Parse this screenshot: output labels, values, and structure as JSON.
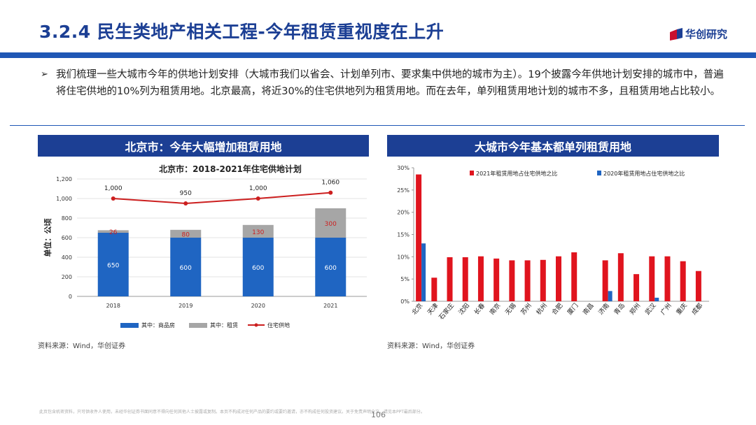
{
  "header": {
    "title": "3.2.4 民生类地产相关工程-今年租赁重视度在上升",
    "logo_text": "华创研究"
  },
  "bullet": {
    "marker": "➢",
    "text": "我们梳理一些大城市今年的供地计划安排（大城市我们以省会、计划单列市、要求集中供地的城市为主）。19个披露今年供地计划安排的城市中，普遍将住宅供地的10%列为租赁用地。北京最高，将近30%的住宅供地列为租赁用地。而在去年，单列租赁用地计划的城市不多，且租赁用地占比较小。"
  },
  "left_panel": {
    "header": "北京市：今年大幅增加租赁用地",
    "source": "资料来源：Wind，华创证券"
  },
  "right_panel": {
    "header": "大城市今年基本都单列租赁用地",
    "source": "资料来源：Wind，华创证券"
  },
  "footer": {
    "disclaimer": "此页包含机密资料，只可供收件人使用，未经华创证券书面同意不得向任何其他人士披露或复制。本页不构成对任何产品的要约或要约邀请，亦不构成任何投资建议。关于免责声明全文，请见本PPT最后部分。",
    "page_number": "106"
  },
  "colors": {
    "brand_blue": "#1c3f94",
    "band_blue": "#1f57b5",
    "bar_blue": "#1f65c2",
    "bar_gray": "#a6a6a6",
    "line_red": "#cc1f1f",
    "bar_red": "#e0141e"
  },
  "chart_data": [
    {
      "type": "bar",
      "title": "北京市：2018-2021年住宅供地计划",
      "ylabel": "单位：公顷",
      "xlabel": "",
      "ylim": [
        0,
        1200
      ],
      "yticks": [
        "0",
        "200",
        "400",
        "600",
        "800",
        "1,000",
        "1,200"
      ],
      "categories": [
        "2018",
        "2019",
        "2020",
        "2021"
      ],
      "series": [
        {
          "name": "其中：商品房",
          "kind": "stacked-bar",
          "values": [
            650,
            600,
            600,
            600
          ],
          "labels": [
            "650",
            "600",
            "600",
            "600"
          ]
        },
        {
          "name": "其中：租赁",
          "kind": "stacked-bar",
          "values": [
            26,
            80,
            130,
            300
          ],
          "labels": [
            "26",
            "80",
            "130",
            "300"
          ]
        },
        {
          "name": "住宅供地",
          "kind": "line",
          "values": [
            1000,
            950,
            1000,
            1060
          ],
          "labels": [
            "1,000",
            "950",
            "1,000",
            "1,060"
          ]
        }
      ],
      "legend": "bottom"
    },
    {
      "type": "bar",
      "title": "",
      "xlabel": "",
      "ylabel": "",
      "ylim": [
        0,
        30
      ],
      "yticks": [
        "0%",
        "5%",
        "10%",
        "15%",
        "20%",
        "25%",
        "30%"
      ],
      "categories": [
        "北京",
        "天津",
        "石家庄",
        "沈阳",
        "长春",
        "南京",
        "无锡",
        "苏州",
        "杭州",
        "合肥",
        "厦门",
        "南昌",
        "济南",
        "青岛",
        "郑州",
        "武汉",
        "广州",
        "重庆",
        "成都"
      ],
      "series": [
        {
          "name": "2021年租赁用地占住宅供地之比",
          "values": [
            28.5,
            5.3,
            9.9,
            9.9,
            10.1,
            9.6,
            9.2,
            9.2,
            9.3,
            10.1,
            11.0,
            0,
            9.2,
            10.8,
            6.1,
            10.1,
            10.1,
            9.0,
            6.8
          ]
        },
        {
          "name": "2020年租赁用地占住宅供地之比",
          "values": [
            13.0,
            0,
            0,
            0,
            0,
            0,
            0,
            0,
            0,
            0,
            0,
            0,
            2.3,
            0,
            0,
            0.8,
            0,
            0,
            0
          ]
        }
      ],
      "legend": "top"
    }
  ]
}
